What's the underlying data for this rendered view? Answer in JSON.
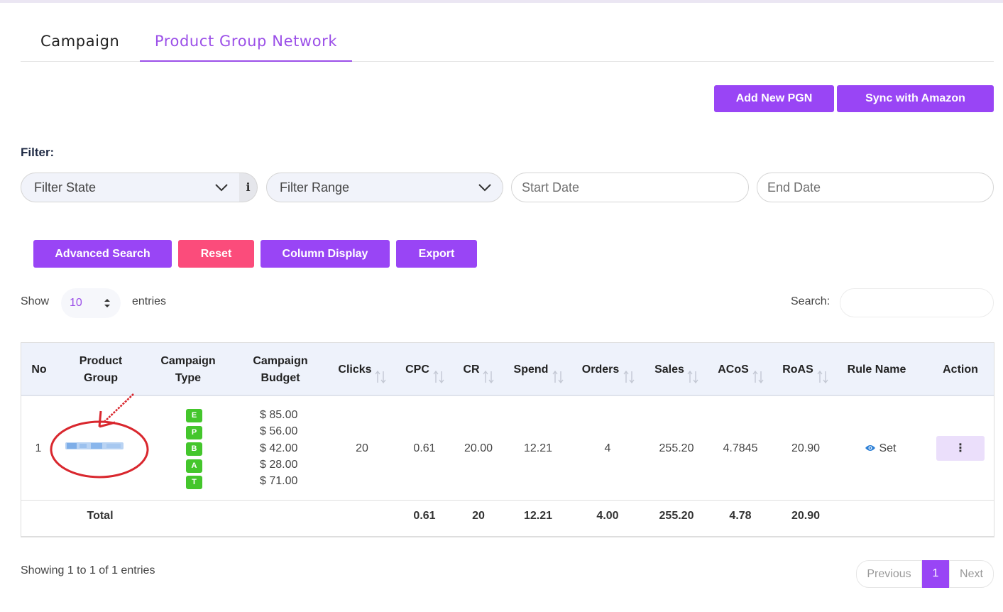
{
  "tabs": [
    {
      "label": "Campaign",
      "active": false
    },
    {
      "label": "Product Group Network",
      "active": true
    }
  ],
  "actions": {
    "add_new": "Add New PGN",
    "sync": "Sync with Amazon"
  },
  "filter": {
    "label": "Filter:",
    "state_placeholder": "Filter State",
    "range_placeholder": "Filter Range",
    "info_icon": "i",
    "start_date_placeholder": "Start Date",
    "end_date_placeholder": "End Date"
  },
  "toolbar": {
    "advanced_search": "Advanced Search",
    "reset": "Reset",
    "column_display": "Column Display",
    "export": "Export"
  },
  "length": {
    "show": "Show",
    "value": "10",
    "entries": "entries"
  },
  "search": {
    "label": "Search:",
    "value": ""
  },
  "table": {
    "headers": {
      "no": "No",
      "product_group_1": "Product",
      "product_group_2": "Group",
      "campaign_type_1": "Campaign",
      "campaign_type_2": "Type",
      "campaign_budget_1": "Campaign",
      "campaign_budget_2": "Budget",
      "clicks": "Clicks",
      "cpc": "CPC",
      "cr": "CR",
      "spend": "Spend",
      "orders": "Orders",
      "sales": "Sales",
      "acos": "ACoS",
      "roas": "RoAS",
      "rule_name": "Rule Name",
      "action": "Action"
    },
    "row": {
      "no": "1",
      "campaign_types": [
        "E",
        "P",
        "B",
        "A",
        "T"
      ],
      "budgets": [
        "$ 85.00",
        "$ 56.00",
        "$ 42.00",
        "$ 28.00",
        "$ 71.00"
      ],
      "clicks": "20",
      "cpc": "0.61",
      "cr": "20.00",
      "spend": "12.21",
      "orders": "4",
      "sales": "255.20",
      "acos": "4.7845",
      "roas": "20.90",
      "rule_name": "Set",
      "rule_icon": "eye-icon",
      "action_icon": "kebab-menu-icon",
      "action_symbol": "⋮"
    },
    "total": {
      "label": "Total",
      "cpc": "0.61",
      "cr": "20",
      "spend": "12.21",
      "orders": "4.00",
      "sales": "255.20",
      "acos": "4.78",
      "roas": "20.90"
    }
  },
  "footer": {
    "info": "Showing 1 to 1 of 1 entries",
    "previous": "Previous",
    "current_page": "1",
    "next": "Next"
  },
  "colors": {
    "accent": "#9945f5",
    "danger": "#fb4c7b",
    "badge": "#44c62c",
    "annotation": "#d9272e"
  }
}
